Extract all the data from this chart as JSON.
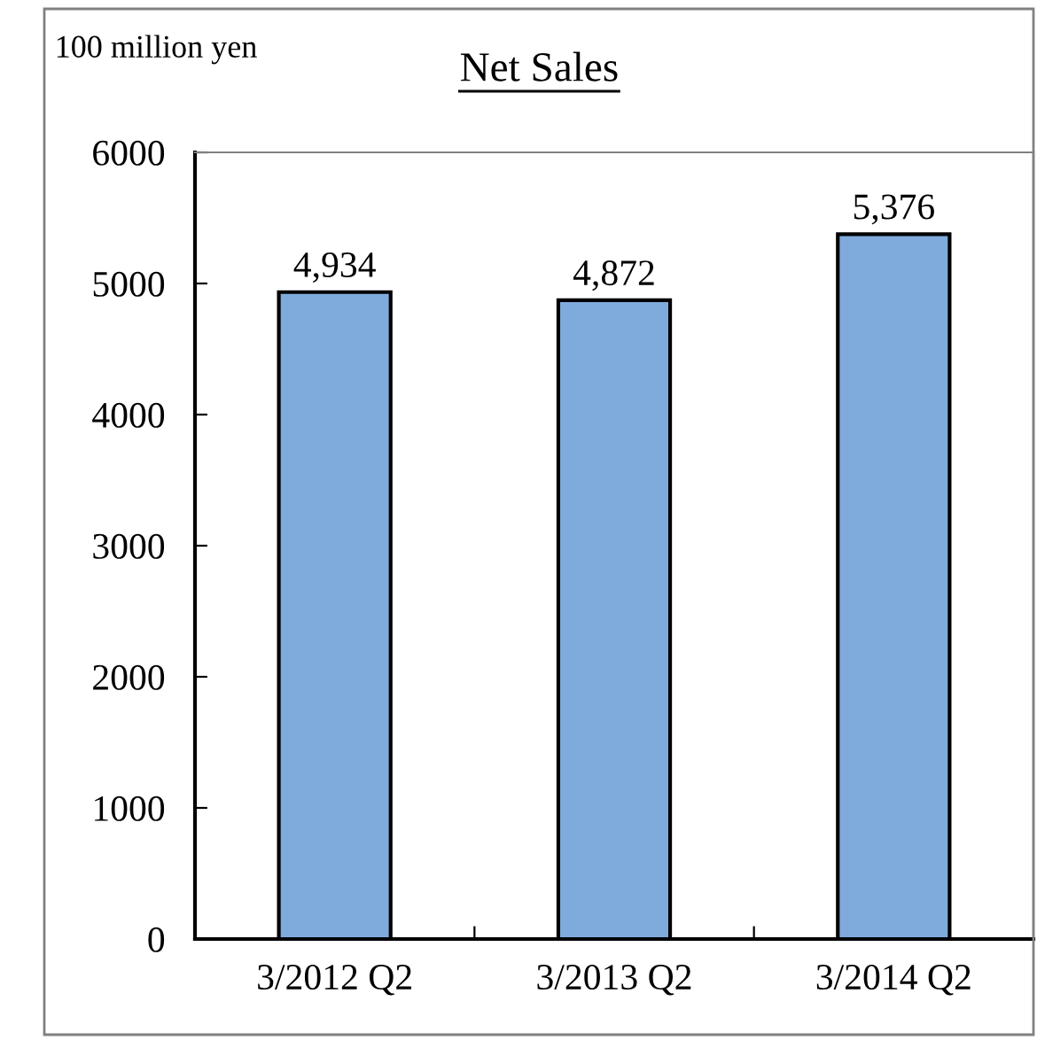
{
  "chart_data": {
    "type": "bar",
    "title": "Net Sales",
    "ylabel": "100 million yen",
    "categories": [
      "3/2012 Q2",
      "3/2013 Q2",
      "3/2014 Q2"
    ],
    "values": [
      4934,
      4872,
      5376
    ],
    "color": "#7fabdc",
    "value_labels": [
      "4,934",
      "4,872",
      "5,376"
    ],
    "ylim": [
      0,
      6000
    ],
    "yticks": [
      0,
      1000,
      2000,
      3000,
      4000,
      5000,
      6000
    ],
    "grid": false,
    "legend": false
  }
}
